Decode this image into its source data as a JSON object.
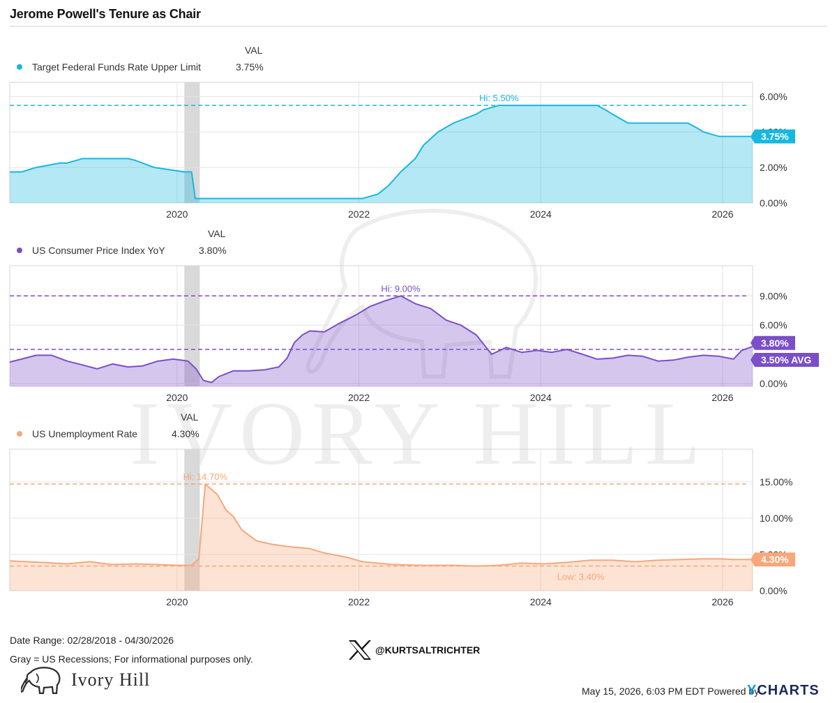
{
  "title": "Jerome Powell's Tenure as Chair",
  "watermark": "IVORY HILL",
  "footer": {
    "date_range": "Date Range: 02/28/2018 - 04/30/2026",
    "note": "Gray = US Recessions; For informational purposes only.",
    "handle": "@KURTSALTRICHTER",
    "timestamp": "May 15, 2026, 6:03 PM EDT Powered by",
    "brand": "Ivory Hill",
    "powered_by": "CHARTS",
    "powered_by_y": "Y"
  },
  "colors": {
    "rate": "#17b7e0",
    "cpi": "#7a4fc8",
    "unemp": "#f7a77a",
    "recession": "#d9d9d9",
    "grid": "#e4e4e4"
  },
  "chart_data": [
    {
      "type": "area",
      "title": "Target Federal Funds Rate Upper Limit",
      "value_header": "VAL",
      "last_value": "3.75%",
      "color": "#17b7e0",
      "ylim": [
        0,
        6.8
      ],
      "y_ticks": [
        "0.00%",
        "2.00%",
        "4.00%",
        "6.00%"
      ],
      "y_tick_values": [
        0,
        2,
        4,
        6
      ],
      "x_ticks": [
        "2020",
        "2022",
        "2024",
        "2026"
      ],
      "x_tick_values": [
        2020,
        2022,
        2024,
        2026
      ],
      "xlim": [
        2018.16,
        2026.33
      ],
      "recession": [
        2020.08,
        2020.25
      ],
      "hi_label": "Hi: 5.50%",
      "hi_value": 5.5,
      "end_badge": "3.75%",
      "x": [
        2018.16,
        2018.25,
        2018.29,
        2018.45,
        2018.71,
        2018.79,
        2018.96,
        2019.46,
        2019.54,
        2019.62,
        2019.75,
        2020.08,
        2020.16,
        2020.2,
        2022.04,
        2022.21,
        2022.33,
        2022.46,
        2022.62,
        2022.71,
        2022.87,
        2023.04,
        2023.29,
        2023.37,
        2023.54,
        2024.62,
        2024.71,
        2024.79,
        2024.96,
        2025.62,
        2025.71,
        2025.79,
        2025.96,
        2026.33
      ],
      "values": [
        1.75,
        1.75,
        1.75,
        2.0,
        2.25,
        2.25,
        2.5,
        2.5,
        2.4,
        2.25,
        2.0,
        1.75,
        1.75,
        0.25,
        0.25,
        0.5,
        1.0,
        1.75,
        2.5,
        3.25,
        4.0,
        4.5,
        5.0,
        5.25,
        5.5,
        5.5,
        5.25,
        5.0,
        4.5,
        4.5,
        4.25,
        4.0,
        3.75,
        3.75
      ]
    },
    {
      "type": "area",
      "title": "US Consumer Price Index YoY",
      "value_header": "VAL",
      "last_value": "3.80%",
      "color": "#7a4fc8",
      "ylim": [
        -0.3,
        12.1
      ],
      "y_ticks": [
        "0.00%",
        "6.00%",
        "9.00%"
      ],
      "y_tick_values": [
        0,
        6,
        9
      ],
      "x_ticks": [
        "2020",
        "2022",
        "2024",
        "2026"
      ],
      "x_tick_values": [
        2020,
        2022,
        2024,
        2026
      ],
      "xlim": [
        2018.16,
        2026.33
      ],
      "recession": [
        2020.08,
        2020.25
      ],
      "hi_label": "Hi: 9.00%",
      "hi_value": 9.0,
      "avg_value": 3.5,
      "end_badge": "3.80%",
      "avg_badge": "3.50% AVG",
      "x": [
        2018.16,
        2018.29,
        2018.45,
        2018.62,
        2018.79,
        2018.96,
        2019.12,
        2019.29,
        2019.46,
        2019.62,
        2019.79,
        2019.96,
        2020.12,
        2020.21,
        2020.29,
        2020.38,
        2020.46,
        2020.62,
        2020.79,
        2020.96,
        2021.12,
        2021.21,
        2021.29,
        2021.38,
        2021.46,
        2021.62,
        2021.79,
        2021.96,
        2022.12,
        2022.29,
        2022.46,
        2022.62,
        2022.79,
        2022.96,
        2023.12,
        2023.29,
        2023.46,
        2023.62,
        2023.79,
        2023.96,
        2024.12,
        2024.29,
        2024.46,
        2024.62,
        2024.79,
        2024.96,
        2025.12,
        2025.29,
        2025.46,
        2025.62,
        2025.79,
        2025.96,
        2026.12,
        2026.21,
        2026.33
      ],
      "values": [
        2.2,
        2.5,
        2.9,
        2.9,
        2.3,
        1.9,
        1.5,
        2.0,
        1.7,
        1.8,
        2.3,
        2.5,
        2.3,
        1.5,
        0.3,
        0.1,
        0.7,
        1.3,
        1.3,
        1.4,
        1.7,
        2.6,
        4.2,
        5.0,
        5.4,
        5.3,
        6.2,
        7.0,
        7.9,
        8.5,
        9.0,
        8.2,
        7.7,
        6.5,
        6.0,
        5.0,
        3.0,
        3.7,
        3.2,
        3.4,
        3.2,
        3.5,
        3.0,
        2.5,
        2.6,
        2.9,
        2.8,
        2.3,
        2.4,
        2.7,
        2.9,
        2.8,
        2.5,
        3.4,
        3.8
      ]
    },
    {
      "type": "area",
      "title": "US Unemployment Rate",
      "value_header": "VAL",
      "last_value": "4.30%",
      "color": "#f7a77a",
      "ylim": [
        0,
        19.5
      ],
      "y_ticks": [
        "0.00%",
        "5.00%",
        "10.00%",
        "15.00%"
      ],
      "y_tick_values": [
        0,
        5,
        10,
        15
      ],
      "x_ticks": [
        "2020",
        "2022",
        "2024",
        "2026"
      ],
      "x_tick_values": [
        2020,
        2022,
        2024,
        2026
      ],
      "xlim": [
        2018.16,
        2026.33
      ],
      "recession": [
        2020.08,
        2020.25
      ],
      "hi_label": "Hi: 14.70%",
      "hi_value": 14.7,
      "low_label": "Low: 3.40%",
      "low_value": 3.4,
      "end_badge": "4.30%",
      "x": [
        2018.16,
        2018.5,
        2018.79,
        2019.04,
        2019.29,
        2019.54,
        2019.79,
        2020.0,
        2020.16,
        2020.24,
        2020.31,
        2020.44,
        2020.54,
        2020.62,
        2020.71,
        2020.87,
        2021.04,
        2021.21,
        2021.46,
        2021.62,
        2021.87,
        2022.04,
        2022.37,
        2022.71,
        2023.04,
        2023.29,
        2023.54,
        2023.79,
        2024.04,
        2024.29,
        2024.54,
        2024.79,
        2025.04,
        2025.29,
        2025.54,
        2025.79,
        2025.96,
        2026.12,
        2026.33
      ],
      "values": [
        4.1,
        3.9,
        3.7,
        4.0,
        3.6,
        3.7,
        3.6,
        3.5,
        3.5,
        4.4,
        14.7,
        13.3,
        11.1,
        10.2,
        8.4,
        6.9,
        6.4,
        6.1,
        5.8,
        5.2,
        4.6,
        4.0,
        3.6,
        3.5,
        3.5,
        3.4,
        3.5,
        3.8,
        3.7,
        3.9,
        4.2,
        4.2,
        4.0,
        4.2,
        4.3,
        4.4,
        4.4,
        4.3,
        4.3
      ]
    }
  ]
}
